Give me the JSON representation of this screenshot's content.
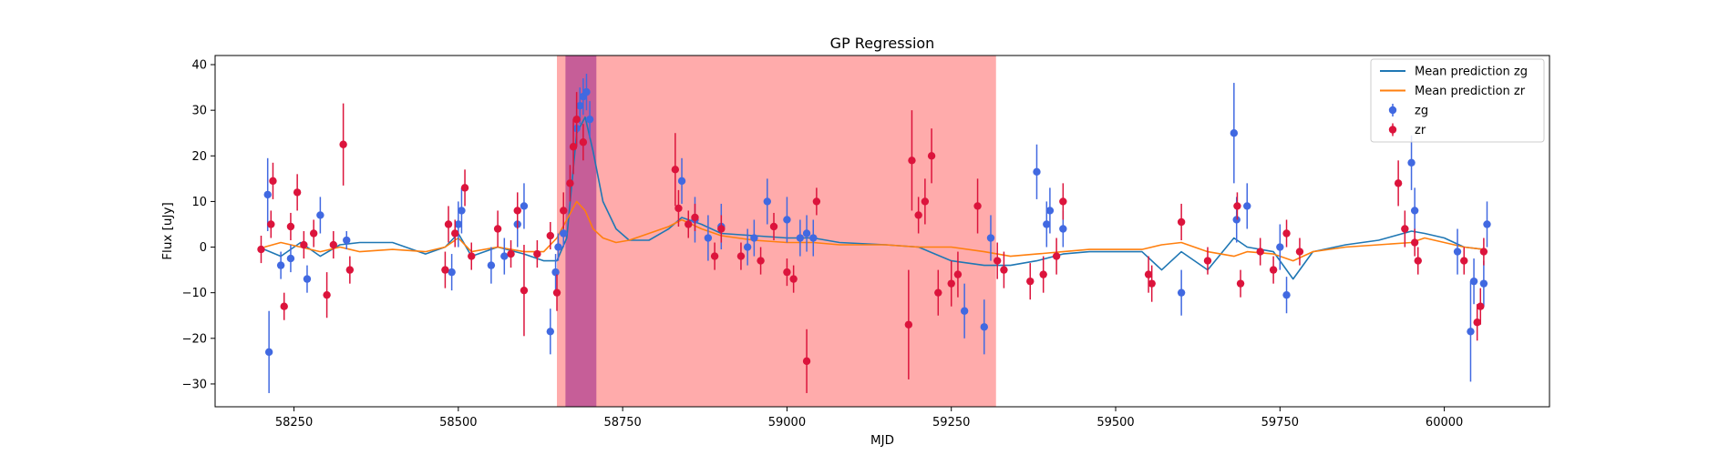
{
  "chart_data": {
    "type": "scatter",
    "title": "GP Regression",
    "xlabel": "MJD",
    "ylabel": "Flux [uJy]",
    "xlim": [
      58130,
      60160
    ],
    "ylim": [
      -35,
      42
    ],
    "xticks": [
      58250,
      58500,
      58750,
      59000,
      59250,
      59500,
      59750,
      60000
    ],
    "yticks": [
      -30,
      -20,
      -10,
      0,
      10,
      20,
      30,
      40
    ],
    "grid": false,
    "legend_position": "top-right",
    "shaded_regions": [
      {
        "x": [
          58650,
          59318
        ],
        "color": "#ff0000",
        "opacity": 0.33
      },
      {
        "x": [
          58663,
          58710
        ],
        "color": "#800080",
        "opacity": 0.45
      }
    ],
    "series": [
      {
        "name": "Mean prediction zg",
        "kind": "line",
        "color": "#1f77b4",
        "x": [
          58205,
          58230,
          58260,
          58290,
          58320,
          58350,
          58400,
          58450,
          58480,
          58500,
          58520,
          58560,
          58600,
          58630,
          58650,
          58665,
          58680,
          58693,
          58705,
          58720,
          58740,
          58760,
          58790,
          58820,
          58840,
          58870,
          58900,
          58950,
          59000,
          59040,
          59080,
          59150,
          59200,
          59250,
          59300,
          59340,
          59380,
          59420,
          59460,
          59500,
          59540,
          59570,
          59600,
          59640,
          59680,
          59700,
          59740,
          59770,
          59800,
          59850,
          59900,
          59950,
          59970,
          60000,
          60030,
          60060
        ],
        "y": [
          -0.5,
          -2,
          1,
          -2,
          0.5,
          1,
          1,
          -1.5,
          0,
          3,
          -2,
          0,
          -1.5,
          -3,
          -3,
          2,
          25,
          28.5,
          21,
          10,
          4,
          1.5,
          1.5,
          4,
          6.5,
          5,
          3,
          2.5,
          2,
          2,
          1,
          0.5,
          0,
          -3,
          -4,
          -4,
          -3,
          -1.5,
          -1,
          -1,
          -1,
          -5,
          -1,
          -5,
          2,
          0,
          -1,
          -7,
          -1,
          0.5,
          1.5,
          3.5,
          3,
          2,
          0,
          -0.5
        ]
      },
      {
        "name": "Mean prediction zr",
        "kind": "line",
        "color": "#ff7f0e",
        "x": [
          58205,
          58230,
          58260,
          58290,
          58320,
          58350,
          58400,
          58450,
          58480,
          58500,
          58520,
          58560,
          58600,
          58630,
          58650,
          58665,
          58680,
          58693,
          58705,
          58720,
          58740,
          58760,
          58790,
          58820,
          58840,
          58870,
          58900,
          58950,
          59000,
          59040,
          59080,
          59150,
          59200,
          59250,
          59300,
          59340,
          59380,
          59420,
          59460,
          59500,
          59540,
          59570,
          59600,
          59640,
          59680,
          59700,
          59740,
          59770,
          59800,
          59850,
          59900,
          59950,
          59970,
          60000,
          60030,
          60060
        ],
        "y": [
          0,
          1,
          0,
          -1,
          0,
          -1,
          -0.5,
          -1,
          0,
          2,
          -1,
          0,
          -1,
          -1,
          2,
          6,
          10,
          8,
          4,
          2,
          1,
          1.5,
          3,
          4.5,
          6,
          4,
          2.5,
          1.5,
          1,
          1,
          0.5,
          0.5,
          0,
          0,
          -1,
          -2,
          -1.5,
          -1,
          -0.5,
          -0.5,
          -0.5,
          0.5,
          1,
          -1,
          -2,
          -1,
          -1.5,
          -3,
          -1,
          0,
          0.5,
          1,
          2,
          1,
          0,
          -0.5
        ]
      },
      {
        "name": "zg",
        "kind": "errorbar",
        "color": "#4169e1",
        "x": [
          58210,
          58212,
          58230,
          58245,
          58270,
          58290,
          58330,
          58490,
          58500,
          58505,
          58550,
          58570,
          58590,
          58600,
          58640,
          58648,
          58652,
          58660,
          58680,
          58685,
          58690,
          58695,
          58700,
          58840,
          58860,
          58880,
          58900,
          58940,
          58950,
          58970,
          59000,
          59020,
          59030,
          59040,
          59270,
          59300,
          59310,
          59380,
          59395,
          59400,
          59420,
          59600,
          59680,
          59684,
          59700,
          59750,
          59760,
          59950,
          59955,
          60020,
          60040,
          60045,
          60060,
          60065
        ],
        "y": [
          11.5,
          -23,
          -4,
          -2.5,
          -7,
          7,
          1.5,
          -5.5,
          5,
          8,
          -4,
          -2,
          5,
          9,
          -18.5,
          -5.5,
          0,
          3,
          26,
          31,
          33,
          34,
          28,
          14.5,
          6,
          2,
          4.5,
          0,
          2,
          10,
          6,
          2,
          3,
          2,
          -14,
          -17.5,
          2,
          16.5,
          5,
          8,
          4,
          -10,
          25,
          6,
          9,
          0,
          -10.5,
          18.5,
          8,
          -1,
          -18.5,
          -7.5,
          -8,
          5
        ],
        "err": [
          8,
          9,
          3,
          3,
          3,
          4,
          2,
          4,
          5,
          5,
          4,
          4,
          5,
          5,
          5,
          4,
          3,
          3,
          4,
          4,
          4,
          4,
          4,
          5,
          5,
          5,
          5,
          4,
          4,
          5,
          5,
          4,
          4,
          4,
          6,
          6,
          5,
          6,
          5,
          5,
          4,
          5,
          11,
          5,
          5,
          5,
          4,
          6,
          5,
          5,
          11,
          5,
          5,
          5
        ]
      },
      {
        "name": "zr",
        "kind": "errorbar",
        "color": "#dc143c",
        "x": [
          58200,
          58215,
          58218,
          58235,
          58245,
          58255,
          58265,
          58280,
          58300,
          58310,
          58325,
          58335,
          58480,
          58485,
          58495,
          58510,
          58520,
          58560,
          58580,
          58590,
          58600,
          58620,
          58640,
          58650,
          58660,
          58670,
          58675,
          58680,
          58690,
          58830,
          58835,
          58850,
          58860,
          58890,
          58900,
          58930,
          58960,
          58980,
          59000,
          59010,
          59030,
          59045,
          59185,
          59190,
          59200,
          59210,
          59220,
          59230,
          59250,
          59260,
          59290,
          59320,
          59330,
          59370,
          59390,
          59410,
          59420,
          59550,
          59555,
          59600,
          59640,
          59685,
          59690,
          59720,
          59740,
          59760,
          59780,
          59930,
          59940,
          59955,
          59960,
          60030,
          60050,
          60055,
          60060
        ],
        "y": [
          -0.5,
          5,
          14.5,
          -13,
          4.5,
          12,
          0.5,
          3,
          -10.5,
          0.5,
          22.5,
          -5,
          -5,
          5,
          3,
          13,
          -2,
          4,
          -1.5,
          8,
          -9.5,
          -1.5,
          2.5,
          -10,
          8,
          14,
          22,
          28,
          23,
          17,
          8.5,
          5,
          6.5,
          -2,
          4,
          -2,
          -3,
          4.5,
          -5.5,
          -7,
          -25,
          10,
          -17,
          19,
          7,
          10,
          20,
          -10,
          -8,
          -6,
          9,
          -3,
          -5,
          -7.5,
          -6,
          -2,
          10,
          -6,
          -8,
          5.5,
          -3,
          9,
          -8,
          -1,
          -5,
          3,
          -1,
          14,
          4,
          1,
          -3,
          -3,
          -16.5,
          -13,
          -1
        ],
        "err": [
          3,
          3,
          4,
          3,
          3,
          4,
          3,
          3,
          5,
          3,
          9,
          3,
          4,
          4,
          3,
          4,
          3,
          4,
          3,
          4,
          10,
          3,
          3,
          4,
          4,
          4,
          6,
          6,
          4,
          8,
          4,
          3,
          3,
          3,
          3,
          3,
          3,
          3,
          3,
          3,
          7,
          3,
          12,
          11,
          4,
          5,
          6,
          5,
          5,
          5,
          6,
          4,
          4,
          4,
          4,
          4,
          4,
          4,
          4,
          4,
          3,
          3,
          3,
          3,
          3,
          3,
          3,
          5,
          4,
          3,
          3,
          3,
          4,
          4,
          3
        ]
      }
    ]
  }
}
